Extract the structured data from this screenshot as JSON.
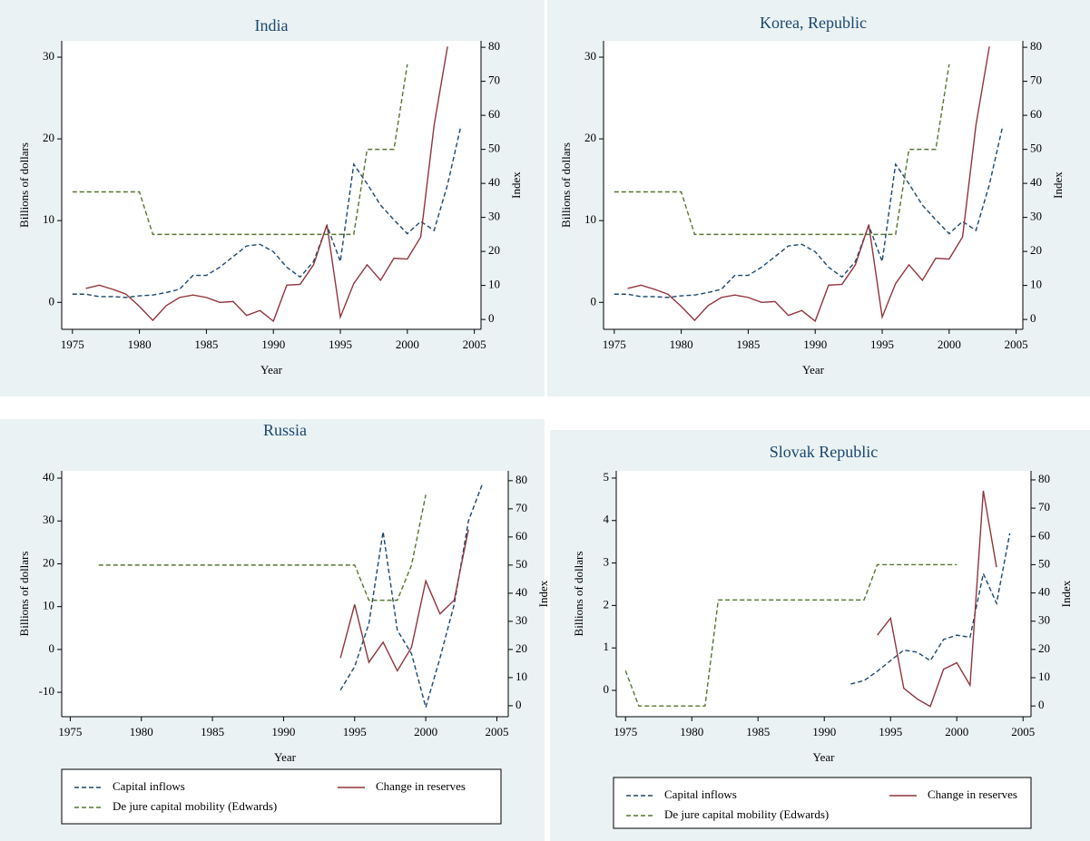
{
  "chart_data": [
    {
      "type": "line",
      "title": "India",
      "xlabel": "Year",
      "ylabel": "Billions of dollars",
      "y2label": "Index",
      "x": [
        1975,
        1976,
        1977,
        1978,
        1979,
        1980,
        1981,
        1982,
        1983,
        1984,
        1985,
        1986,
        1987,
        1988,
        1989,
        1990,
        1991,
        1992,
        1993,
        1994,
        1995,
        1996,
        1997,
        1998,
        1999,
        2000,
        2001,
        2002,
        2003,
        2004
      ],
      "series": [
        {
          "color": "#1a476f",
          "dashed": true,
          "values": [
            1.0,
            1.0,
            0.7,
            0.7,
            0.6,
            0.8,
            0.9,
            1.2,
            1.6,
            3.3,
            3.3,
            4.3,
            5.6,
            6.9,
            7.1,
            6.2,
            4.3,
            3.1,
            5.0,
            9.4,
            5.0,
            16.9,
            14.5,
            11.9,
            10.1,
            8.4,
            9.9,
            8.8,
            14.4,
            21.6
          ]
        },
        {
          "color": "#90353b",
          "dashed": false,
          "values": [
            null,
            1.7,
            2.1,
            1.6,
            1.0,
            -0.5,
            -2.2,
            -0.4,
            0.6,
            0.9,
            0.6,
            0.0,
            0.1,
            -1.6,
            -1.0,
            -2.3,
            2.1,
            2.2,
            4.6,
            9.5,
            -1.8,
            2.3,
            4.6,
            2.7,
            5.4,
            5.3,
            8.0,
            21.7,
            31.3,
            null
          ]
        },
        {
          "color": "#55752f",
          "dashed": true,
          "axis": "y2",
          "values": [
            37.5,
            37.5,
            37.5,
            37.5,
            37.5,
            37.5,
            25,
            25,
            25,
            25,
            25,
            25,
            25,
            25,
            25,
            25,
            25,
            25,
            25,
            25,
            25,
            25,
            50,
            50,
            50,
            75,
            null,
            null,
            null,
            null
          ]
        }
      ],
      "xlim": [
        1974.2,
        2005.5
      ],
      "xticks": [
        1975,
        1980,
        1985,
        1990,
        1995,
        2000,
        2005
      ],
      "ylim": [
        -3.3,
        32
      ],
      "yticks": [
        0,
        10,
        20,
        30
      ],
      "y2lim": [
        -2.9,
        81.9
      ],
      "y2ticks": [
        0,
        10,
        20,
        30,
        40,
        50,
        60,
        70,
        80
      ]
    },
    {
      "type": "line",
      "title": "Korea, Republic",
      "xlabel": "Year",
      "ylabel": "Billions of dollars",
      "y2label": "Index",
      "x": [
        1975,
        1976,
        1977,
        1978,
        1979,
        1980,
        1981,
        1982,
        1983,
        1984,
        1985,
        1986,
        1987,
        1988,
        1989,
        1990,
        1991,
        1992,
        1993,
        1994,
        1995,
        1996,
        1997,
        1998,
        1999,
        2000,
        2001,
        2002,
        2003,
        2004
      ],
      "series": [
        {
          "color": "#1a476f",
          "dashed": true,
          "values": [
            1.0,
            1.0,
            0.7,
            0.7,
            0.6,
            0.8,
            0.9,
            1.2,
            1.6,
            3.3,
            3.3,
            4.3,
            5.6,
            6.9,
            7.1,
            6.2,
            4.3,
            3.1,
            5.0,
            9.4,
            5.0,
            16.9,
            14.5,
            11.9,
            10.1,
            8.4,
            9.9,
            8.8,
            14.4,
            21.6
          ]
        },
        {
          "color": "#90353b",
          "dashed": false,
          "values": [
            null,
            1.7,
            2.1,
            1.6,
            1.0,
            -0.5,
            -2.2,
            -0.4,
            0.6,
            0.9,
            0.6,
            0.0,
            0.1,
            -1.6,
            -1.0,
            -2.3,
            2.1,
            2.2,
            4.6,
            9.5,
            -1.8,
            2.3,
            4.6,
            2.7,
            5.4,
            5.3,
            8.0,
            21.7,
            31.3,
            null
          ]
        },
        {
          "color": "#55752f",
          "dashed": true,
          "axis": "y2",
          "values": [
            37.5,
            37.5,
            37.5,
            37.5,
            37.5,
            37.5,
            25,
            25,
            25,
            25,
            25,
            25,
            25,
            25,
            25,
            25,
            25,
            25,
            25,
            25,
            25,
            25,
            50,
            50,
            50,
            75,
            null,
            null,
            null,
            null
          ]
        }
      ],
      "xlim": [
        1974.2,
        2005.5
      ],
      "xticks": [
        1975,
        1980,
        1985,
        1990,
        1995,
        2000,
        2005
      ],
      "ylim": [
        -3.3,
        32
      ],
      "yticks": [
        0,
        10,
        20,
        30
      ],
      "y2lim": [
        -2.9,
        81.9
      ],
      "y2ticks": [
        0,
        10,
        20,
        30,
        40,
        50,
        60,
        70,
        80
      ]
    },
    {
      "type": "line",
      "title": "Russia",
      "xlabel": "Year",
      "ylabel": "Billions of dollars",
      "y2label": "Index",
      "legend": "bottom",
      "x": [
        1977,
        1978,
        1979,
        1980,
        1981,
        1982,
        1983,
        1984,
        1985,
        1986,
        1987,
        1988,
        1989,
        1990,
        1991,
        1992,
        1993,
        1994,
        1995,
        1996,
        1997,
        1998,
        1999,
        2000,
        2001,
        2002,
        2003,
        2004
      ],
      "series": [
        {
          "name": "Capital inflows",
          "color": "#1a476f",
          "dashed": true,
          "values": [
            null,
            null,
            null,
            null,
            null,
            null,
            null,
            null,
            null,
            null,
            null,
            null,
            null,
            null,
            null,
            null,
            null,
            -9.5,
            -4,
            6,
            27.5,
            4.5,
            -1,
            -13.5,
            -2,
            10.5,
            30,
            38.8
          ]
        },
        {
          "name": "Change in reserves",
          "color": "#90353b",
          "dashed": false,
          "values": [
            null,
            null,
            null,
            null,
            null,
            null,
            null,
            null,
            null,
            null,
            null,
            null,
            null,
            null,
            null,
            null,
            null,
            -2,
            10.5,
            -3,
            1.7,
            -5,
            0.5,
            16,
            8.3,
            11.5,
            28,
            null
          ]
        },
        {
          "name": "De jure capital mobility (Edwards)",
          "color": "#55752f",
          "dashed": true,
          "axis": "y2",
          "values": [
            50,
            50,
            50,
            50,
            50,
            50,
            50,
            50,
            50,
            50,
            50,
            50,
            50,
            50,
            50,
            50,
            50,
            50,
            50,
            37.5,
            37.5,
            37.5,
            50,
            75,
            null,
            null,
            null,
            null
          ]
        }
      ],
      "xlim": [
        1974.4,
        2005.8
      ],
      "xticks": [
        1975,
        1980,
        1985,
        1990,
        1995,
        2000,
        2005
      ],
      "ylim": [
        -15.7,
        41.7
      ],
      "yticks": [
        -10,
        0,
        10,
        20,
        30,
        40
      ],
      "y2lim": [
        -3.9,
        83.5
      ],
      "y2ticks": [
        0,
        10,
        20,
        30,
        40,
        50,
        60,
        70,
        80
      ]
    },
    {
      "type": "line",
      "title": "Slovak Republic",
      "xlabel": "Year",
      "ylabel": "Billions of dollars",
      "y2label": "Index",
      "legend": "bottom",
      "x": [
        1975,
        1976,
        1977,
        1978,
        1979,
        1980,
        1981,
        1982,
        1983,
        1984,
        1985,
        1986,
        1987,
        1988,
        1989,
        1990,
        1991,
        1992,
        1993,
        1994,
        1995,
        1996,
        1997,
        1998,
        1999,
        2000,
        2001,
        2002,
        2003,
        2004
      ],
      "series": [
        {
          "name": "Capital inflows",
          "color": "#1a476f",
          "dashed": true,
          "values": [
            null,
            null,
            null,
            null,
            null,
            null,
            null,
            null,
            null,
            null,
            null,
            null,
            null,
            null,
            null,
            null,
            null,
            0.15,
            0.23,
            0.45,
            0.7,
            0.95,
            0.9,
            0.7,
            1.2,
            1.3,
            1.25,
            2.75,
            2.05,
            3.7
          ]
        },
        {
          "name": "Change in reserves",
          "color": "#90353b",
          "dashed": false,
          "values": [
            null,
            null,
            null,
            null,
            null,
            null,
            null,
            null,
            null,
            null,
            null,
            null,
            null,
            null,
            null,
            null,
            null,
            null,
            null,
            1.3,
            1.7,
            0.05,
            -0.2,
            -0.38,
            0.5,
            0.65,
            0.12,
            4.7,
            2.9,
            null
          ]
        },
        {
          "name": "De jure capital mobility (Edwards)",
          "color": "#55752f",
          "dashed": true,
          "axis": "y2",
          "values": [
            12.5,
            0,
            0,
            0,
            0,
            0,
            0,
            37.5,
            37.5,
            37.5,
            37.5,
            37.5,
            37.5,
            37.5,
            37.5,
            37.5,
            37.5,
            37.5,
            37.5,
            50,
            50,
            50,
            50,
            50,
            50,
            50,
            null,
            null,
            null,
            null
          ]
        }
      ],
      "xlim": [
        1974.3,
        2005.6
      ],
      "xticks": [
        1975,
        1980,
        1985,
        1990,
        1995,
        2000,
        2005
      ],
      "ylim": [
        -0.62,
        5.17
      ],
      "yticks": [
        0,
        1,
        2,
        3,
        4,
        5
      ],
      "y2lim": [
        -3.8,
        83.2
      ],
      "y2ticks": [
        0,
        10,
        20,
        30,
        40,
        50,
        60,
        70,
        80
      ]
    }
  ]
}
